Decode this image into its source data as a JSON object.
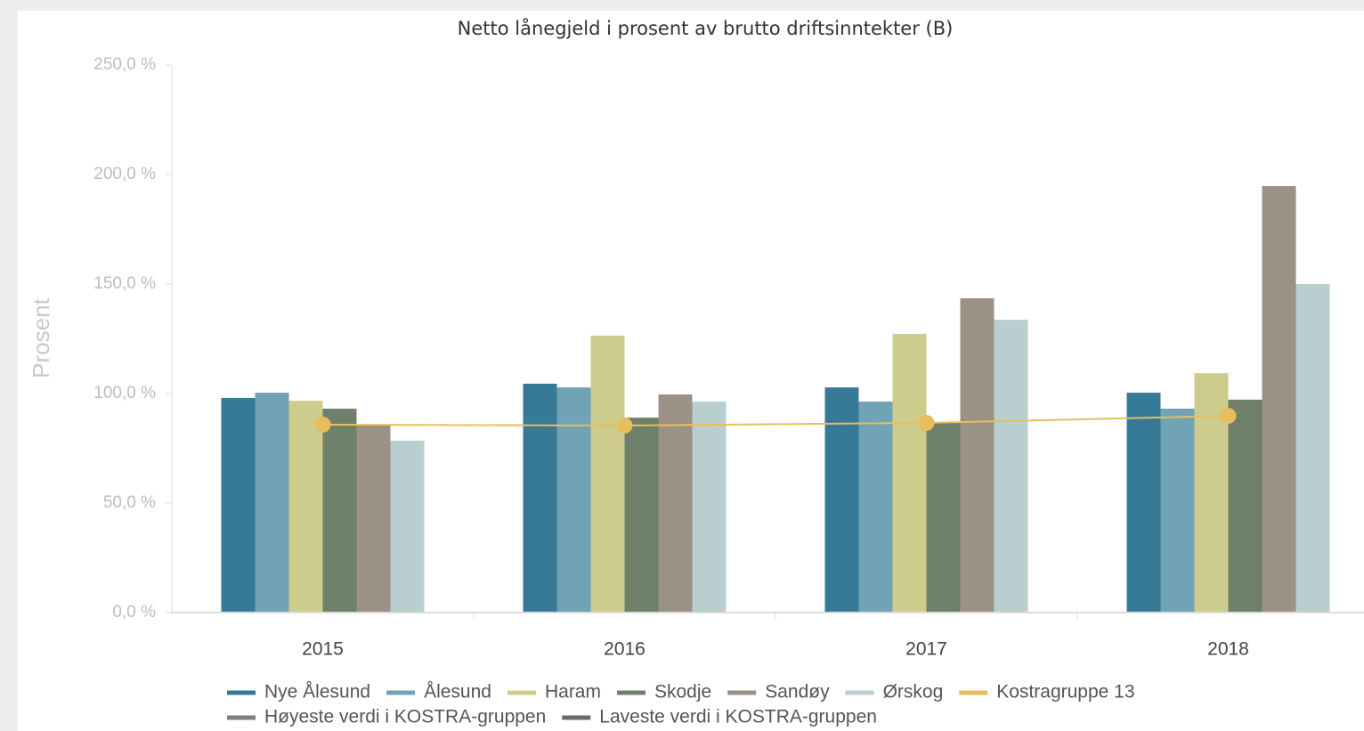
{
  "chart_data": {
    "type": "bar",
    "title": "Netto lånegjeld i prosent av brutto driftsinntekter (B)",
    "y_label": "Prosent",
    "categories": [
      "2015",
      "2016",
      "2017",
      "2018"
    ],
    "ylim": [
      0,
      250
    ],
    "yticks": [
      {
        "value": 0,
        "label": "0,0 %"
      },
      {
        "value": 50,
        "label": "50,0 %"
      },
      {
        "value": 100,
        "label": "100,0 %"
      },
      {
        "value": 150,
        "label": "150,0 %"
      },
      {
        "value": 200,
        "label": "200,0 %"
      },
      {
        "value": 250,
        "label": "250,0 %"
      }
    ],
    "series": [
      {
        "name": "Nye Ålesund",
        "color": "#367a97",
        "values": [
          98.0,
          104.5,
          102.8,
          100.4
        ]
      },
      {
        "name": "Ålesund",
        "color": "#6fa3b5",
        "values": [
          100.4,
          102.8,
          96.3,
          93.1
        ]
      },
      {
        "name": "Haram",
        "color": "#cdcc8c",
        "values": [
          96.7,
          126.4,
          127.2,
          109.3
        ]
      },
      {
        "name": "Skodje",
        "color": "#6e8069",
        "values": [
          93.1,
          89.0,
          86.6,
          97.2
        ]
      },
      {
        "name": "Sandøy",
        "color": "#9c9186",
        "values": [
          85.8,
          99.6,
          143.5,
          194.7
        ]
      },
      {
        "name": "Ørskog",
        "color": "#b9cfcf",
        "values": [
          78.5,
          96.3,
          133.7,
          150.0
        ]
      },
      {
        "name": "Kostragruppe 13",
        "color": "#e8be5c",
        "type": "line",
        "values": [
          85.8,
          85.4,
          86.6,
          89.8
        ]
      },
      {
        "name": "Høyeste verdi i KOSTRA-gruppen",
        "color": "#7f7f7f",
        "type": "line",
        "values": [
          null,
          null,
          null,
          null
        ]
      },
      {
        "name": "Laveste verdi i KOSTRA-gruppen",
        "color": "#6b6b6b",
        "type": "line",
        "values": [
          null,
          null,
          null,
          null
        ]
      }
    ]
  }
}
